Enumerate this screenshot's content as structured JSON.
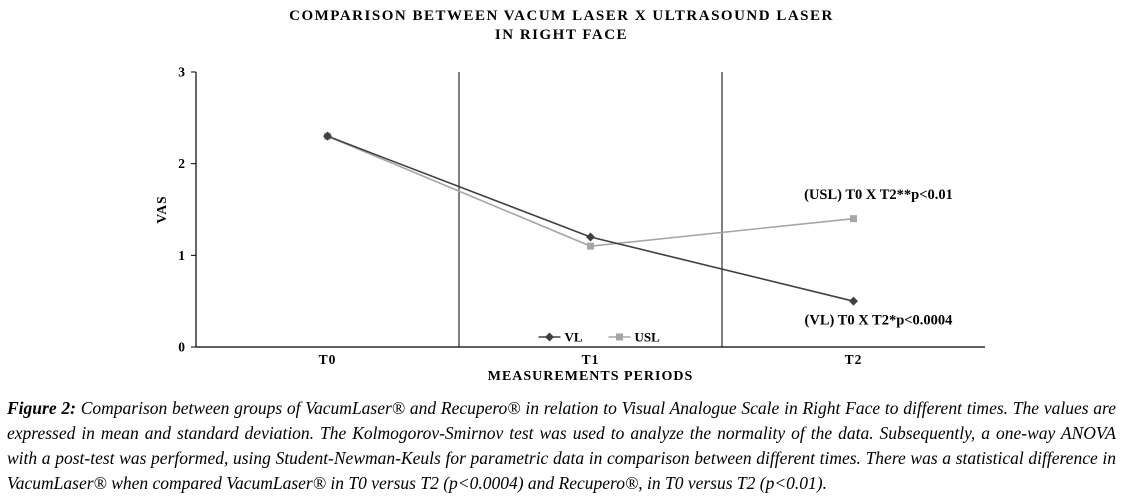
{
  "chart_data": {
    "type": "line",
    "title_line1": "COMPARISON BETWEEN VACUM LASER X ULTRASOUND LASER",
    "title_line2": "IN RIGHT FACE",
    "xlabel": "MEASUREMENTS PERIODS",
    "ylabel": "VAS",
    "ylim": [
      0,
      3
    ],
    "yticks": [
      0,
      1,
      2,
      3
    ],
    "categories": [
      "T0",
      "T1",
      "T2"
    ],
    "series": [
      {
        "name": "USL",
        "color": "#a6a6a6",
        "marker": "square",
        "values": [
          2.3,
          1.1,
          1.4
        ]
      },
      {
        "name": "VL",
        "color": "#404040",
        "marker": "diamond",
        "values": [
          2.3,
          1.2,
          0.5
        ]
      }
    ],
    "legend": {
      "position": "bottom-center-inside",
      "order": [
        "VL",
        "USL"
      ]
    },
    "annotations": [
      {
        "text": "(USL) T0 X T2**p<0.01",
        "xf": 0.865,
        "y": 1.67
      },
      {
        "text": "(VL) T0 X T2*p<0.0004",
        "xf": 0.865,
        "y": 0.3
      }
    ],
    "grid": "vertical-category-separators"
  },
  "caption": {
    "label": "Figure 2:",
    "text": " Comparison between groups of VacumLaser® and Recupero® in relation to Visual Analogue Scale in Right Face to different times. The values are expressed in mean and standard deviation. The Kolmogorov-Smirnov test was used to analyze the normality of the data. Subsequently, a one-way ANOVA with a post-test was performed, using Student-Newman-Keuls for parametric data in comparison between different times. There was a statistical difference in VacumLaser® when compared VacumLaser® in T0 versus T2 (p<0.0004) and Recupero®, in T0 versus T2 (p<0.01)."
  }
}
